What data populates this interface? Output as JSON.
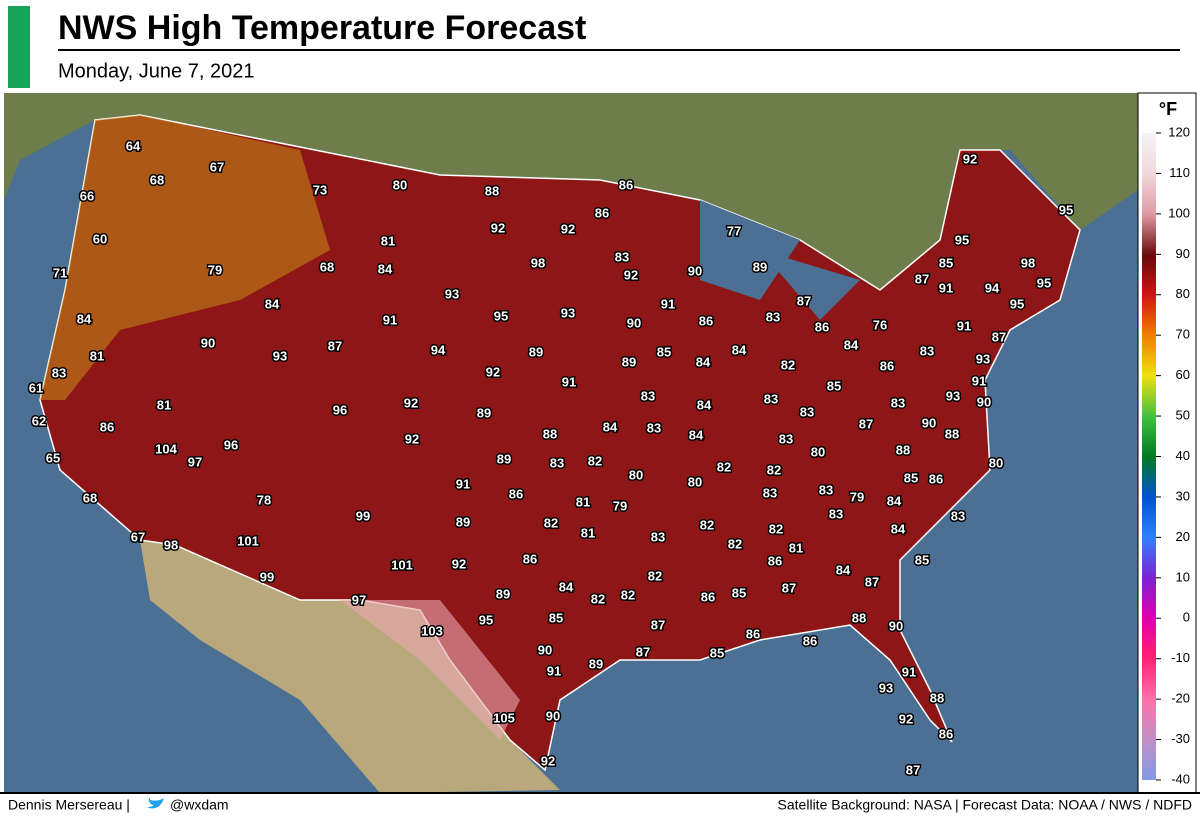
{
  "header": {
    "title": "NWS High Temperature Forecast",
    "subtitle": "Monday, June 7, 2021"
  },
  "map": {
    "temperatures": [
      64,
      67,
      68,
      66,
      73,
      80,
      88,
      86,
      92,
      86,
      92,
      92,
      95,
      60,
      81,
      83,
      77,
      71,
      79,
      68,
      84,
      98,
      90,
      89,
      95,
      92,
      85,
      98,
      84,
      93,
      91,
      87,
      87,
      91,
      94,
      95,
      95,
      84,
      91,
      95,
      93,
      90,
      86,
      83,
      86,
      76,
      91,
      87,
      90,
      87,
      94,
      89,
      85,
      84,
      84,
      83,
      81,
      93,
      92,
      89,
      84,
      82,
      85,
      86,
      93,
      83,
      91,
      91,
      61,
      96,
      92,
      83,
      83,
      93,
      90,
      81,
      89,
      84,
      83,
      83,
      62,
      86,
      92,
      88,
      84,
      83,
      84,
      87,
      90,
      88,
      83,
      88,
      80,
      104,
      96,
      97,
      65,
      89,
      83,
      82,
      80,
      82,
      82,
      80,
      85,
      86,
      80,
      83,
      83,
      91,
      86,
      68,
      78,
      81,
      79,
      79,
      84,
      99,
      89,
      82,
      81,
      82,
      82,
      83,
      84,
      83,
      67,
      98,
      101,
      83,
      82,
      81,
      86,
      85,
      101,
      92,
      86,
      84,
      87,
      99,
      82,
      84,
      89,
      82,
      82,
      86,
      85,
      87,
      97,
      95,
      85,
      87,
      88,
      90,
      103,
      86,
      86,
      90,
      87,
      85,
      89,
      91,
      91,
      93,
      88,
      92,
      105,
      90,
      86,
      92,
      87
    ]
  },
  "legend": {
    "unit": "°F",
    "ticks": [
      120,
      110,
      100,
      90,
      80,
      70,
      60,
      50,
      40,
      30,
      20,
      10,
      0,
      -10,
      -20,
      -30,
      -40
    ]
  },
  "footer": {
    "author": "Dennis Mersereau |",
    "handle": "@wxdam",
    "credits": "Satellite Background: NASA | Forecast Data: NOAA / NWS / NDFD"
  }
}
